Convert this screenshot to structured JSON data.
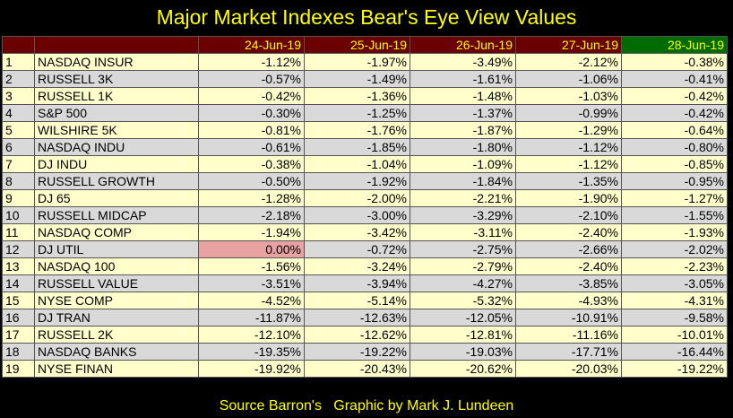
{
  "title": "Major Market Indexes Bear's Eye View Values",
  "footer": "Source Barron's   Graphic by Mark J. Lundeen",
  "colors": {
    "background": "#000000",
    "title_text": "#ffff00",
    "header_bg": "#6b0000",
    "header_highlight_bg": "#006b00",
    "row_odd": "#ffffcc",
    "row_even": "#d9d9d9",
    "zero_highlight": "#e8a2a2"
  },
  "chart_data": {
    "type": "table",
    "title": "Major Market Indexes Bear's Eye View Values",
    "highlight_column": "28-Jun-19",
    "columns": [
      "24-Jun-19",
      "25-Jun-19",
      "26-Jun-19",
      "27-Jun-19",
      "28-Jun-19"
    ],
    "rows": [
      {
        "rank": "1",
        "name": "NASDAQ INSUR",
        "values": [
          "-1.12%",
          "-1.97%",
          "-3.49%",
          "-2.12%",
          "-0.38%"
        ]
      },
      {
        "rank": "2",
        "name": "RUSSELL 3K",
        "values": [
          "-0.57%",
          "-1.49%",
          "-1.61%",
          "-1.06%",
          "-0.41%"
        ]
      },
      {
        "rank": "3",
        "name": "RUSSELL 1K",
        "values": [
          "-0.42%",
          "-1.36%",
          "-1.48%",
          "-1.03%",
          "-0.42%"
        ]
      },
      {
        "rank": "4",
        "name": "S&P 500",
        "values": [
          "-0.30%",
          "-1.25%",
          "-1.37%",
          "-0.99%",
          "-0.42%"
        ]
      },
      {
        "rank": "5",
        "name": "WILSHIRE 5K",
        "values": [
          "-0.81%",
          "-1.76%",
          "-1.87%",
          "-1.29%",
          "-0.64%"
        ]
      },
      {
        "rank": "6",
        "name": "NASDAQ INDU",
        "values": [
          "-0.61%",
          "-1.85%",
          "-1.80%",
          "-1.12%",
          "-0.80%"
        ]
      },
      {
        "rank": "7",
        "name": "DJ INDU",
        "values": [
          "-0.38%",
          "-1.04%",
          "-1.09%",
          "-1.12%",
          "-0.85%"
        ]
      },
      {
        "rank": "8",
        "name": "RUSSELL GROWTH",
        "values": [
          "-0.50%",
          "-1.92%",
          "-1.84%",
          "-1.35%",
          "-0.95%"
        ]
      },
      {
        "rank": "9",
        "name": "DJ  65",
        "values": [
          "-1.28%",
          "-2.00%",
          "-2.21%",
          "-1.90%",
          "-1.27%"
        ]
      },
      {
        "rank": "10",
        "name": "RUSSELL MIDCAP",
        "values": [
          "-2.18%",
          "-3.00%",
          "-3.29%",
          "-2.10%",
          "-1.55%"
        ]
      },
      {
        "rank": "11",
        "name": "NASDAQ COMP",
        "values": [
          "-1.94%",
          "-3.42%",
          "-3.11%",
          "-2.40%",
          "-1.93%"
        ]
      },
      {
        "rank": "12",
        "name": "DJ  UTIL",
        "values": [
          "0.00%",
          "-0.72%",
          "-2.75%",
          "-2.66%",
          "-2.02%"
        ]
      },
      {
        "rank": "13",
        "name": "NASDAQ 100",
        "values": [
          "-1.56%",
          "-3.24%",
          "-2.79%",
          "-2.40%",
          "-2.23%"
        ]
      },
      {
        "rank": "14",
        "name": "RUSSELL VALUE",
        "values": [
          "-3.51%",
          "-3.94%",
          "-4.27%",
          "-3.85%",
          "-3.05%"
        ]
      },
      {
        "rank": "15",
        "name": "NYSE COMP",
        "values": [
          "-4.52%",
          "-5.14%",
          "-5.32%",
          "-4.93%",
          "-4.31%"
        ]
      },
      {
        "rank": "16",
        "name": "DJ  TRAN",
        "values": [
          "-11.87%",
          "-12.63%",
          "-12.05%",
          "-10.91%",
          "-9.58%"
        ]
      },
      {
        "rank": "17",
        "name": "RUSSELL 2K",
        "values": [
          "-12.10%",
          "-12.62%",
          "-12.81%",
          "-11.16%",
          "-10.01%"
        ]
      },
      {
        "rank": "18",
        "name": "NASDAQ BANKS",
        "values": [
          "-19.35%",
          "-19.22%",
          "-19.03%",
          "-17.71%",
          "-16.44%"
        ]
      },
      {
        "rank": "19",
        "name": "NYSE FINAN",
        "values": [
          "-19.92%",
          "-20.43%",
          "-20.62%",
          "-20.03%",
          "-19.22%"
        ]
      }
    ]
  }
}
